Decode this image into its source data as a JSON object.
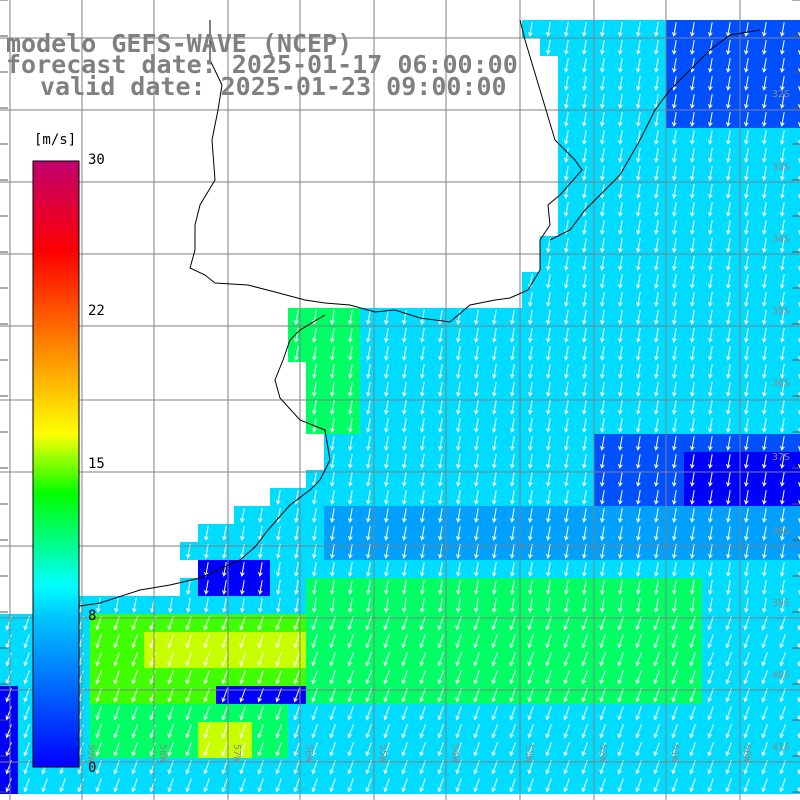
{
  "title": {
    "line1": "modelo GEFS-WAVE (NCEP)",
    "line2": "forecast date: 2025-01-17 06:00:00",
    "line3": "valid date: 2025-01-23 09:00:00"
  },
  "colorbar": {
    "unit": "[m/s]",
    "ticks": [
      "30",
      "22",
      "15",
      "8",
      "0"
    ],
    "stops": [
      "#0000ff",
      "#00c8ff",
      "#00ffff",
      "#00ff00",
      "#ffff00",
      "#ff8000",
      "#ff0000",
      "#c0006e"
    ]
  },
  "lat_labels": [
    "32S",
    "33S",
    "34S",
    "35S",
    "36S",
    "37S",
    "38S",
    "39S",
    "40S",
    "41S"
  ],
  "lon_labels": [
    "59W",
    "58W",
    "57W",
    "56W",
    "55W",
    "54W",
    "53W",
    "52W",
    "51W",
    "50W"
  ],
  "colors": {
    "land": "#ffffff",
    "coast": "#000000",
    "grid": "#808080",
    "arrow": "#ffffff"
  },
  "field": {
    "description_colors": [
      "#0000ff",
      "#0050ff",
      "#00a0ff",
      "#00dcff",
      "#00ffc8",
      "#00ff64",
      "#40ff00",
      "#c8ff00"
    ]
  }
}
